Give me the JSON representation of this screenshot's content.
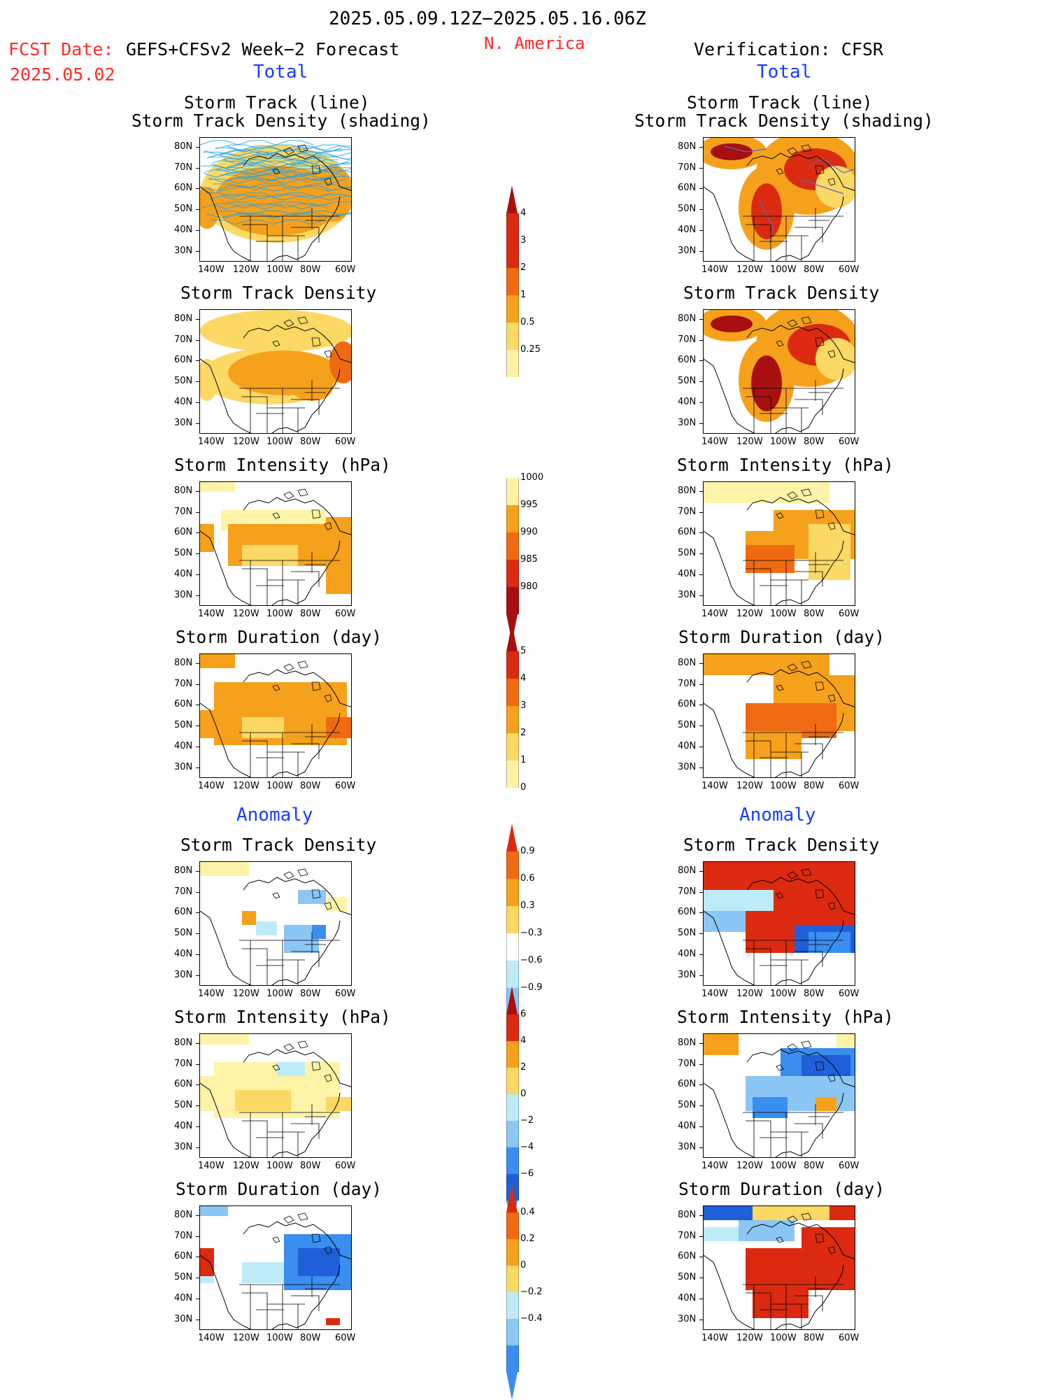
{
  "header": {
    "date_range": "2025.05.09.12Z−2025.05.16.06Z",
    "region": "N. America",
    "fcst_label": "FCST Date:",
    "fcst_date": "2025.05.02",
    "forecast_name": "GEFS+CFSv2 Week−2 Forecast",
    "verification": "Verification: CFSR",
    "total_left": "Total",
    "total_right": "Total",
    "anomaly_left": "Anomaly",
    "anomaly_right": "Anomaly"
  },
  "panel_titles": {
    "track_line": "Storm Track (line)",
    "track_shading": "Storm Track Density (shading)",
    "density": "Storm Track Density",
    "intensity": "Storm Intensity (hPa)",
    "duration": "Storm Duration (day)"
  },
  "axes": {
    "lat_labels": [
      "80N",
      "70N",
      "60N",
      "50N",
      "40N",
      "30N"
    ],
    "lon_labels": [
      "140W",
      "120W",
      "100W",
      "80W",
      "60W"
    ]
  },
  "colorbars": {
    "density_total": [
      "4",
      "3",
      "2",
      "1",
      "0.5",
      "0.25"
    ],
    "intensity_total": [
      "1000",
      "995",
      "990",
      "985",
      "980"
    ],
    "duration_total": [
      "5",
      "4",
      "3",
      "2",
      "1",
      "0"
    ],
    "density_anom": [
      "0.9",
      "0.6",
      "0.3",
      "−0.3",
      "−0.6",
      "−0.9"
    ],
    "intensity_anom": [
      "6",
      "4",
      "2",
      "0",
      "−2",
      "−4",
      "−6"
    ],
    "duration_anom": [
      "0.4",
      "0.2",
      "0",
      "−0.2",
      "−0.4"
    ]
  },
  "colors": {
    "pale_yellow": "#fff3a8",
    "yellow": "#fcd865",
    "orange": "#f5a11c",
    "dark_orange": "#f06a12",
    "red": "#db2a10",
    "dark_red": "#a80f0f",
    "light_blue": "#bdecf8",
    "sky_blue": "#8cc6f5",
    "blue": "#3a8ef0",
    "deep_blue": "#1f5fd8",
    "track_line": "#1ea0e8"
  }
}
